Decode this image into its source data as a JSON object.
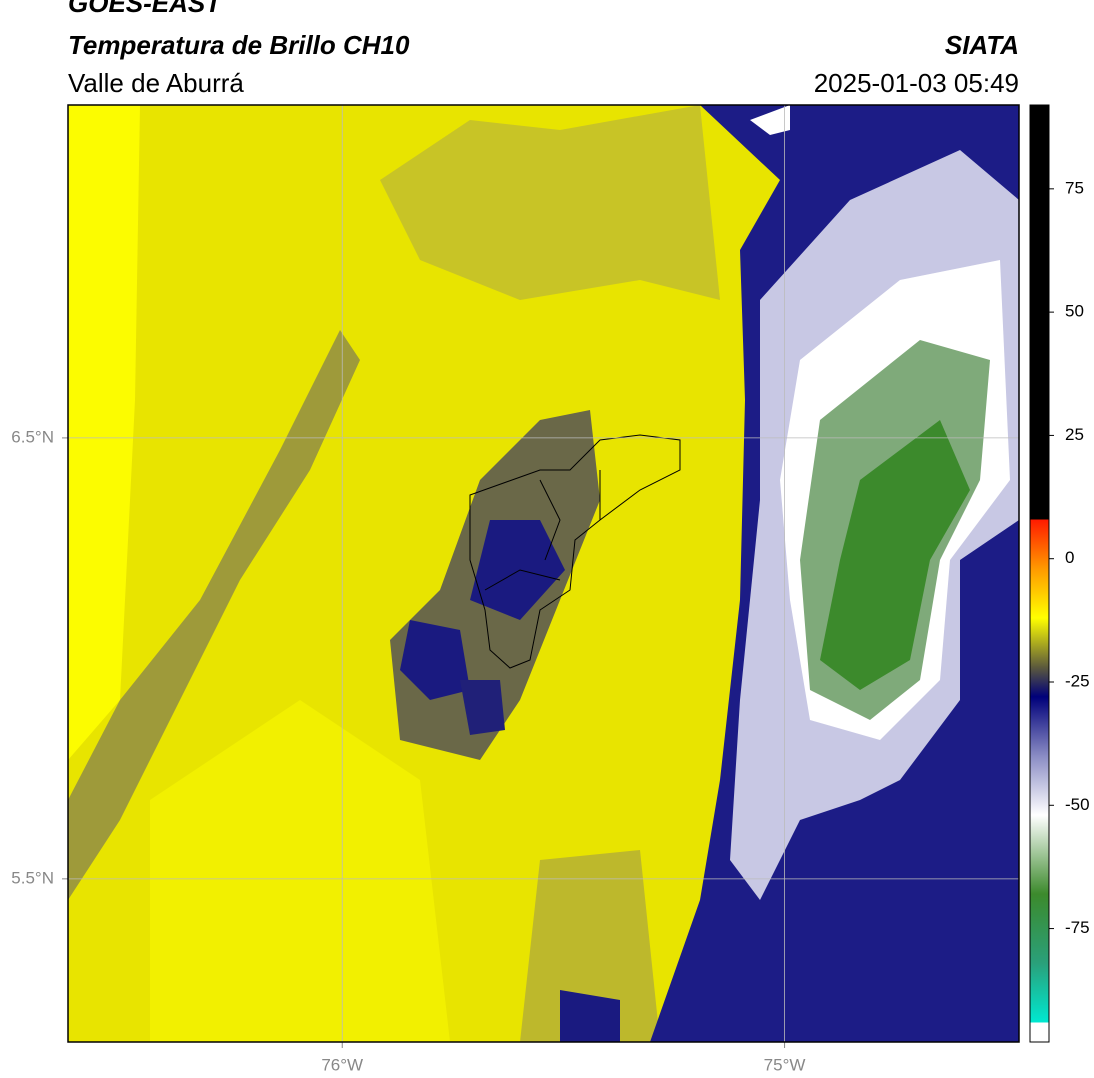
{
  "header": {
    "title": "GOES-EAST",
    "subtitle": "Temperatura de Brillo CH10",
    "region": "Valle de Aburrá",
    "source": "SIATA",
    "datetime": "2025-01-03 05:49"
  },
  "map": {
    "xlim": [
      -76.62,
      -74.47
    ],
    "ylim": [
      5.13,
      7.255
    ],
    "xticks": [
      {
        "value": -76,
        "label": "76°W"
      },
      {
        "value": -75,
        "label": "75°W"
      }
    ],
    "yticks": [
      {
        "value": 6.5,
        "label": "6.5°N"
      },
      {
        "value": 5.5,
        "label": "5.5°N"
      }
    ],
    "grid": true
  },
  "colorbar": {
    "lim": [
      -98,
      92
    ],
    "ticks": [
      75,
      50,
      25,
      0,
      -25,
      -50,
      -75
    ],
    "stops": [
      {
        "value": -98,
        "color": "#ffffff"
      },
      {
        "value": -94,
        "color": "#ffffff"
      },
      {
        "value": -94,
        "color": "#00e8d0"
      },
      {
        "value": -82,
        "color": "#2aa07a"
      },
      {
        "value": -68,
        "color": "#3c8a2c"
      },
      {
        "value": -52,
        "color": "#ffffff"
      },
      {
        "value": -40,
        "color": "#8a8cc4"
      },
      {
        "value": -28,
        "color": "#00007a"
      },
      {
        "value": -22,
        "color": "#5c5a3c"
      },
      {
        "value": -12,
        "color": "#ffff00"
      },
      {
        "value": -2,
        "color": "#ff9900"
      },
      {
        "value": 8,
        "color": "#ff1a00"
      },
      {
        "value": 8,
        "color": "#000000"
      },
      {
        "value": 92,
        "color": "#000000"
      }
    ]
  }
}
